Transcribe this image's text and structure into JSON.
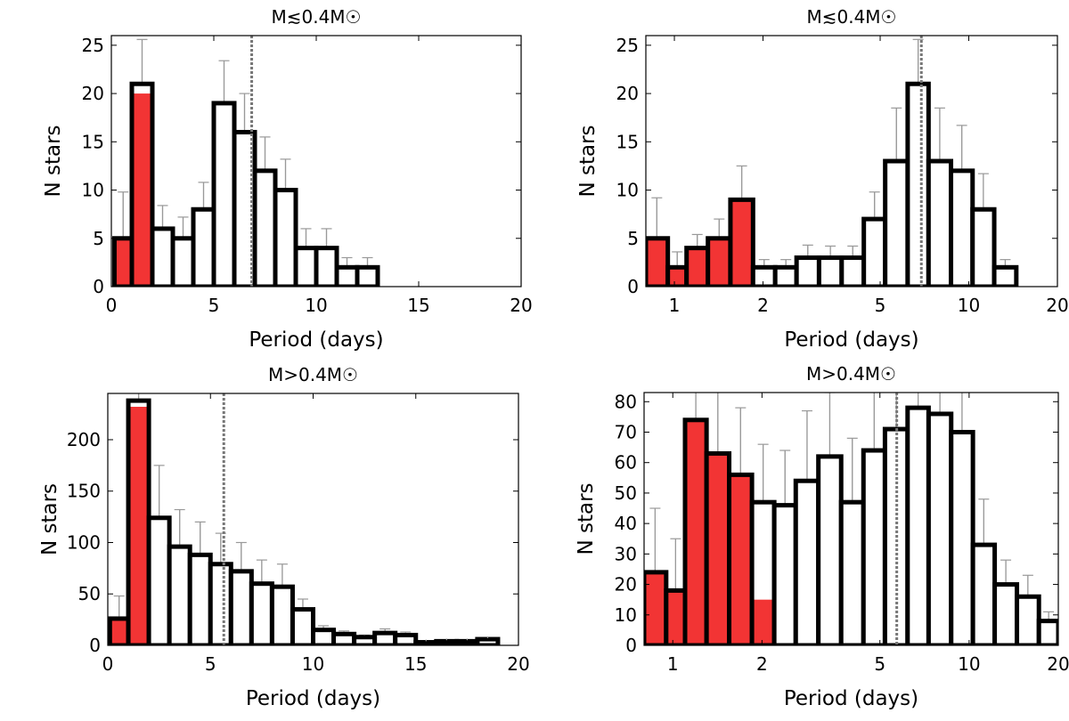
{
  "figure": {
    "colors": {
      "short_bar": "#f23434",
      "long_bar": "#ffffff",
      "bar_edge": "#000000",
      "error_bar": "#999999",
      "median_line": "#777777"
    }
  },
  "chart_data": [
    {
      "type": "bar",
      "title": "M≲0.4M☉",
      "xlabel": "Period (days)",
      "ylabel": "N stars",
      "xscale": "linear",
      "xlim": [
        0,
        20
      ],
      "ylim": [
        0,
        26
      ],
      "xticks": [
        0,
        5,
        10,
        15,
        20
      ],
      "xtick_labels": [
        "0",
        "5",
        "10",
        "15",
        "20"
      ],
      "yticks": [
        0,
        5,
        10,
        15,
        20,
        25
      ],
      "ytick_labels": [
        "0",
        "5",
        "10",
        "15",
        "20",
        "25"
      ],
      "median_period": 6.85,
      "bins": [
        {
          "lo": 0.15,
          "hi": 1.0,
          "value": 5,
          "filled": true,
          "err": 4.8
        },
        {
          "lo": 1.0,
          "hi": 2.0,
          "value": 21,
          "filled_value": 20,
          "filled": true,
          "err": 4.6
        },
        {
          "lo": 2.0,
          "hi": 3.0,
          "value": 6,
          "filled": false,
          "err": 2.4
        },
        {
          "lo": 3.0,
          "hi": 4.0,
          "value": 5,
          "filled": false,
          "err": 2.2
        },
        {
          "lo": 4.0,
          "hi": 5.0,
          "value": 8,
          "filled": false,
          "err": 2.8
        },
        {
          "lo": 5.0,
          "hi": 6.0,
          "value": 19,
          "filled": false,
          "err": 4.4
        },
        {
          "lo": 6.0,
          "hi": 7.0,
          "value": 16,
          "filled": false,
          "err": 4.0
        },
        {
          "lo": 7.0,
          "hi": 8.0,
          "value": 12,
          "filled": false,
          "err": 3.5
        },
        {
          "lo": 8.0,
          "hi": 9.0,
          "value": 10,
          "filled": false,
          "err": 3.2
        },
        {
          "lo": 9.0,
          "hi": 10.0,
          "value": 4,
          "filled": false,
          "err": 2.0
        },
        {
          "lo": 10.0,
          "hi": 11.0,
          "value": 4,
          "filled": false,
          "err": 2.0
        },
        {
          "lo": 11.0,
          "hi": 12.0,
          "value": 2,
          "filled": false,
          "err": 1.0
        },
        {
          "lo": 12.0,
          "hi": 13.0,
          "value": 2,
          "filled": false,
          "err": 1.0
        }
      ]
    },
    {
      "type": "bar",
      "title": "M≲0.4M☉",
      "xlabel": "Period (days)",
      "ylabel": "N stars",
      "xscale": "log",
      "xlim": [
        0.8,
        20
      ],
      "ylim": [
        0,
        26
      ],
      "xticks": [
        1,
        2,
        5,
        10,
        20
      ],
      "xtick_labels": [
        "1",
        "2",
        "5",
        "10",
        "20"
      ],
      "yticks": [
        0,
        5,
        10,
        15,
        20,
        25
      ],
      "ytick_labels": [
        "0",
        "5",
        "10",
        "15",
        "20",
        "25"
      ],
      "median_period": 6.9,
      "bins": [
        {
          "lo": 0.8,
          "hi": 0.95,
          "value": 5,
          "filled": true,
          "err": 4.2
        },
        {
          "lo": 0.95,
          "hi": 1.1,
          "value": 2,
          "filled": true,
          "err": 1.6
        },
        {
          "lo": 1.1,
          "hi": 1.3,
          "value": 4,
          "filled": true,
          "err": 1.4
        },
        {
          "lo": 1.3,
          "hi": 1.55,
          "value": 5,
          "filled": true,
          "err": 2.0
        },
        {
          "lo": 1.55,
          "hi": 1.85,
          "value": 9,
          "filled": true,
          "err": 3.5
        },
        {
          "lo": 1.85,
          "hi": 2.2,
          "value": 2,
          "filled": false,
          "err": 0.8
        },
        {
          "lo": 2.2,
          "hi": 2.6,
          "value": 2,
          "filled": false,
          "err": 0.8
        },
        {
          "lo": 2.6,
          "hi": 3.1,
          "value": 3,
          "filled": false,
          "err": 1.3
        },
        {
          "lo": 3.1,
          "hi": 3.7,
          "value": 3,
          "filled": false,
          "err": 1.2
        },
        {
          "lo": 3.7,
          "hi": 4.4,
          "value": 3,
          "filled": false,
          "err": 1.2
        },
        {
          "lo": 4.4,
          "hi": 5.2,
          "value": 7,
          "filled": false,
          "err": 2.8
        },
        {
          "lo": 5.2,
          "hi": 6.2,
          "value": 13,
          "filled": false,
          "err": 5.5
        },
        {
          "lo": 6.2,
          "hi": 7.3,
          "value": 21,
          "filled": false,
          "err": 4.6
        },
        {
          "lo": 7.3,
          "hi": 8.7,
          "value": 13,
          "filled": false,
          "err": 5.5
        },
        {
          "lo": 8.7,
          "hi": 10.3,
          "value": 12,
          "filled": false,
          "err": 4.7
        },
        {
          "lo": 10.3,
          "hi": 12.2,
          "value": 8,
          "filled": false,
          "err": 3.7
        },
        {
          "lo": 12.2,
          "hi": 14.5,
          "value": 2,
          "filled": false,
          "err": 0.8
        }
      ]
    },
    {
      "type": "bar",
      "title": "M>0.4M☉",
      "xlabel": "Period (days)",
      "ylabel": "N stars",
      "xscale": "linear",
      "xlim": [
        0,
        20
      ],
      "ylim": [
        0,
        245
      ],
      "xticks": [
        0,
        5,
        10,
        15,
        20
      ],
      "xtick_labels": [
        "0",
        "5",
        "10",
        "15",
        "20"
      ],
      "yticks": [
        0,
        50,
        100,
        150,
        200
      ],
      "ytick_labels": [
        "0",
        "50",
        "100",
        "150",
        "200"
      ],
      "median_period": 5.65,
      "bins": [
        {
          "lo": 0.1,
          "hi": 1.0,
          "value": 26,
          "filled": true,
          "err": 22
        },
        {
          "lo": 1.0,
          "hi": 2.0,
          "value": 238,
          "filled_value": 232,
          "filled": true,
          "err": 105
        },
        {
          "lo": 2.0,
          "hi": 3.0,
          "value": 124,
          "filled": false,
          "err": 51
        },
        {
          "lo": 3.0,
          "hi": 4.0,
          "value": 96,
          "filled": false,
          "err": 36
        },
        {
          "lo": 4.0,
          "hi": 5.0,
          "value": 88,
          "filled": false,
          "err": 32
        },
        {
          "lo": 5.0,
          "hi": 6.0,
          "value": 79,
          "filled": false,
          "err": 30
        },
        {
          "lo": 6.0,
          "hi": 7.0,
          "value": 72,
          "filled": false,
          "err": 28
        },
        {
          "lo": 7.0,
          "hi": 8.0,
          "value": 60,
          "filled": false,
          "err": 23
        },
        {
          "lo": 8.0,
          "hi": 9.0,
          "value": 57,
          "filled": false,
          "err": 22
        },
        {
          "lo": 9.0,
          "hi": 10.0,
          "value": 35,
          "filled": false,
          "err": 10
        },
        {
          "lo": 10.0,
          "hi": 11.0,
          "value": 15,
          "filled": false,
          "err": 4
        },
        {
          "lo": 11.0,
          "hi": 12.0,
          "value": 11,
          "filled": false,
          "err": 3
        },
        {
          "lo": 12.0,
          "hi": 13.0,
          "value": 8,
          "filled": false,
          "err": 2
        },
        {
          "lo": 13.0,
          "hi": 14.0,
          "value": 12,
          "filled": false,
          "err": 4
        },
        {
          "lo": 14.0,
          "hi": 15.0,
          "value": 10,
          "filled": false,
          "err": 3
        },
        {
          "lo": 15.0,
          "hi": 16.0,
          "value": 3,
          "filled": false,
          "err": 1
        },
        {
          "lo": 16.0,
          "hi": 17.0,
          "value": 4,
          "filled": false,
          "err": 1
        },
        {
          "lo": 17.0,
          "hi": 18.0,
          "value": 4,
          "filled": false,
          "err": 1
        },
        {
          "lo": 18.0,
          "hi": 19.0,
          "value": 6,
          "filled": false,
          "err": 1
        }
      ]
    },
    {
      "type": "bar",
      "title": "M>0.4M☉",
      "xlabel": "Period (days)",
      "ylabel": "N stars",
      "xscale": "log",
      "xlim": [
        0.8,
        20
      ],
      "ylim": [
        0,
        83
      ],
      "xticks": [
        1,
        2,
        5,
        10,
        20
      ],
      "xtick_labels": [
        "1",
        "2",
        "5",
        "10",
        "20"
      ],
      "yticks": [
        0,
        10,
        20,
        30,
        40,
        50,
        60,
        70,
        80
      ],
      "ytick_labels": [
        "0",
        "10",
        "20",
        "30",
        "40",
        "50",
        "60",
        "70",
        "80"
      ],
      "median_period": 5.7,
      "bins": [
        {
          "lo": 0.8,
          "hi": 0.95,
          "value": 24,
          "filled": true,
          "err": 21
        },
        {
          "lo": 0.95,
          "hi": 1.1,
          "value": 18,
          "filled": true,
          "err": 17
        },
        {
          "lo": 1.1,
          "hi": 1.3,
          "value": 74,
          "filled": true,
          "err": 25
        },
        {
          "lo": 1.3,
          "hi": 1.55,
          "value": 63,
          "filled": true,
          "err": 22
        },
        {
          "lo": 1.55,
          "hi": 1.85,
          "value": 56,
          "filled": true,
          "err": 22
        },
        {
          "lo": 1.85,
          "hi": 2.2,
          "value": 47,
          "filled_value": 15,
          "filled": false,
          "err": 19
        },
        {
          "lo": 2.2,
          "hi": 2.6,
          "value": 46,
          "filled": false,
          "err": 18
        },
        {
          "lo": 2.6,
          "hi": 3.1,
          "value": 54,
          "filled": false,
          "err": 23
        },
        {
          "lo": 3.1,
          "hi": 3.7,
          "value": 62,
          "filled": false,
          "err": 21
        },
        {
          "lo": 3.7,
          "hi": 4.4,
          "value": 47,
          "filled": false,
          "err": 21
        },
        {
          "lo": 4.4,
          "hi": 5.2,
          "value": 64,
          "filled": false,
          "err": 22
        },
        {
          "lo": 5.2,
          "hi": 6.2,
          "value": 71,
          "filled": false,
          "err": 22
        },
        {
          "lo": 6.2,
          "hi": 7.3,
          "value": 78,
          "filled": false,
          "err": 26
        },
        {
          "lo": 7.3,
          "hi": 8.7,
          "value": 76,
          "filled": false,
          "err": 24
        },
        {
          "lo": 8.7,
          "hi": 10.3,
          "value": 70,
          "filled": false,
          "err": 22
        },
        {
          "lo": 10.3,
          "hi": 12.2,
          "value": 33,
          "filled": false,
          "err": 15
        },
        {
          "lo": 12.2,
          "hi": 14.5,
          "value": 20,
          "filled": false,
          "err": 8
        },
        {
          "lo": 14.5,
          "hi": 17.2,
          "value": 16,
          "filled": false,
          "err": 7
        },
        {
          "lo": 17.2,
          "hi": 20.0,
          "value": 8,
          "filled": false,
          "err": 3
        }
      ]
    }
  ]
}
